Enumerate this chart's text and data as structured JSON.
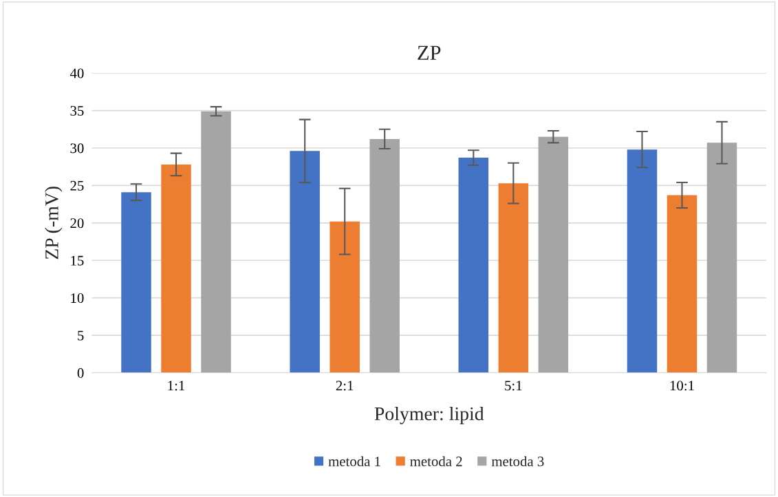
{
  "chart_data": {
    "type": "bar",
    "title": "ZP",
    "xlabel": "Polymer: lipid",
    "ylabel": "ZP (-mV)",
    "categories": [
      "1:1",
      "2:1",
      "5:1",
      "10:1"
    ],
    "series": [
      {
        "name": "metoda 1",
        "color": "#4472c4",
        "values": [
          24.1,
          29.6,
          28.7,
          29.8
        ],
        "errors": [
          1.1,
          4.2,
          1.0,
          2.4
        ]
      },
      {
        "name": "metoda 2",
        "color": "#ed7d31",
        "values": [
          27.8,
          20.2,
          25.3,
          23.7
        ],
        "errors": [
          1.5,
          4.4,
          2.7,
          1.7
        ]
      },
      {
        "name": "metoda 3",
        "color": "#a5a5a5",
        "values": [
          34.9,
          31.2,
          31.5,
          30.7
        ],
        "errors": [
          0.6,
          1.3,
          0.8,
          2.8
        ]
      }
    ],
    "ylim": [
      0,
      40
    ],
    "yticks": [
      0,
      5,
      10,
      15,
      20,
      25,
      30,
      35,
      40
    ],
    "grid": "y",
    "legend": "bottom"
  }
}
